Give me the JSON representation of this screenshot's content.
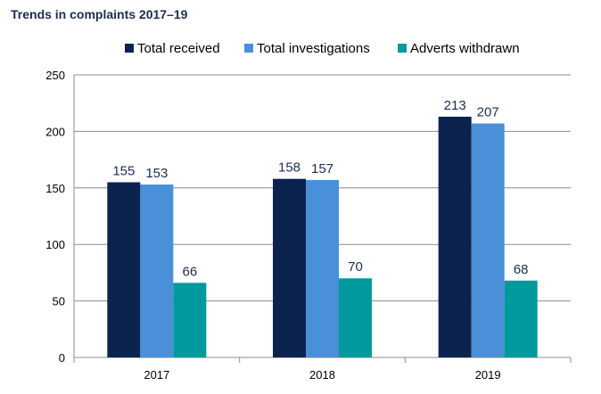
{
  "chart_data": {
    "type": "bar",
    "title": "Trends in complaints 2017–19",
    "xlabel": "",
    "ylabel": "",
    "categories": [
      "2017",
      "2018",
      "2019"
    ],
    "series": [
      {
        "name": "Total received",
        "values": [
          155,
          158,
          213
        ],
        "color": "#0c2350"
      },
      {
        "name": "Total investigations",
        "values": [
          153,
          157,
          207
        ],
        "color": "#4a90d9"
      },
      {
        "name": "Adverts withdrawn",
        "values": [
          66,
          70,
          68
        ],
        "color": "#00999e"
      }
    ],
    "ylim": [
      0,
      250
    ],
    "yticks": [
      0,
      50,
      100,
      150,
      200,
      250
    ],
    "grid": true,
    "legend_position": "top"
  }
}
